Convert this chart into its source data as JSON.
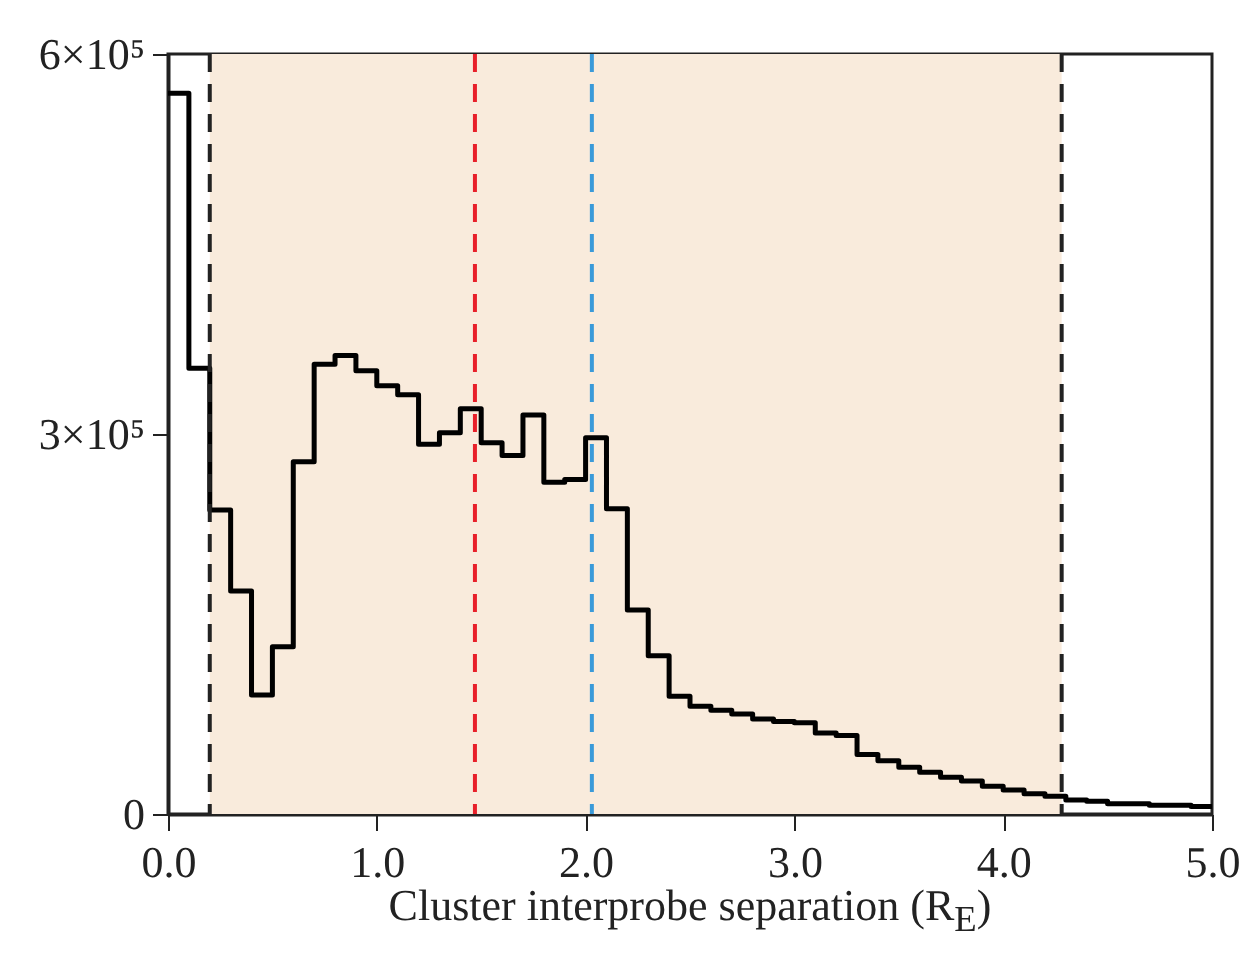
{
  "chart_data": {
    "type": "histogram",
    "xlabel": "Cluster interprobe separation (R$_{E}$)",
    "bins": [
      0,
      0.1,
      0.2,
      0.3,
      0.4,
      0.5,
      0.6,
      0.7,
      0.8,
      0.9,
      1.0,
      1.1,
      1.2,
      1.3,
      1.4,
      1.5,
      1.6,
      1.7,
      1.8,
      1.9,
      2.0,
      2.1,
      2.2,
      2.3,
      2.4,
      2.5,
      2.6,
      2.7,
      2.8,
      2.9,
      3.0,
      3.1,
      3.2,
      3.3,
      3.4,
      3.5,
      3.6,
      3.7,
      3.8,
      3.9,
      4.0,
      4.1,
      4.2,
      4.3,
      4.4,
      4.5,
      4.6,
      4.7,
      4.8,
      4.9,
      5.0
    ],
    "values": [
      569000,
      352000,
      240000,
      176000,
      94000,
      132000,
      278000,
      355000,
      362000,
      350000,
      338000,
      331000,
      292000,
      301000,
      320000,
      293000,
      283000,
      315000,
      262000,
      264000,
      297000,
      241000,
      161000,
      125000,
      93000,
      85000,
      82000,
      79000,
      75000,
      73000,
      72000,
      64000,
      62000,
      47000,
      42000,
      37000,
      33000,
      29000,
      26000,
      22000,
      19000,
      16000,
      14000,
      11000,
      10000,
      8000,
      8000,
      7000,
      7000,
      6000
    ],
    "color": "#000000",
    "xlim": [
      0,
      5.0
    ],
    "xticks": [
      {
        "value": 0,
        "label": "0.0"
      },
      {
        "value": 1,
        "label": "1.0"
      },
      {
        "value": 2,
        "label": "2.0"
      },
      {
        "value": 3,
        "label": "3.0"
      },
      {
        "value": 4,
        "label": "4.0"
      },
      {
        "value": 5,
        "label": "5.0"
      }
    ],
    "ylim": [
      0,
      600000
    ],
    "yticks": [
      0,
      {
        "value": 300000,
        "label": "3×10⁵"
      },
      {
        "value": 600000,
        "label": "6×10⁵"
      }
    ],
    "grid": false,
    "ref_lines": [
      {
        "axis": "x",
        "value": 0.2,
        "color": "#222222",
        "line_style": "dashed"
      },
      {
        "axis": "x",
        "value": 1.47,
        "color": "#e8202a",
        "line_style": "dashed"
      },
      {
        "axis": "x",
        "value": 2.03,
        "color": "#3a9ad9",
        "line_style": "dashed"
      },
      {
        "axis": "x",
        "value": 4.28,
        "color": "#222222",
        "line_style": "dashed"
      }
    ],
    "bands": [
      {
        "axis": "x",
        "from": 0.2,
        "to": 4.28,
        "color": "#f9ebdc"
      }
    ]
  }
}
